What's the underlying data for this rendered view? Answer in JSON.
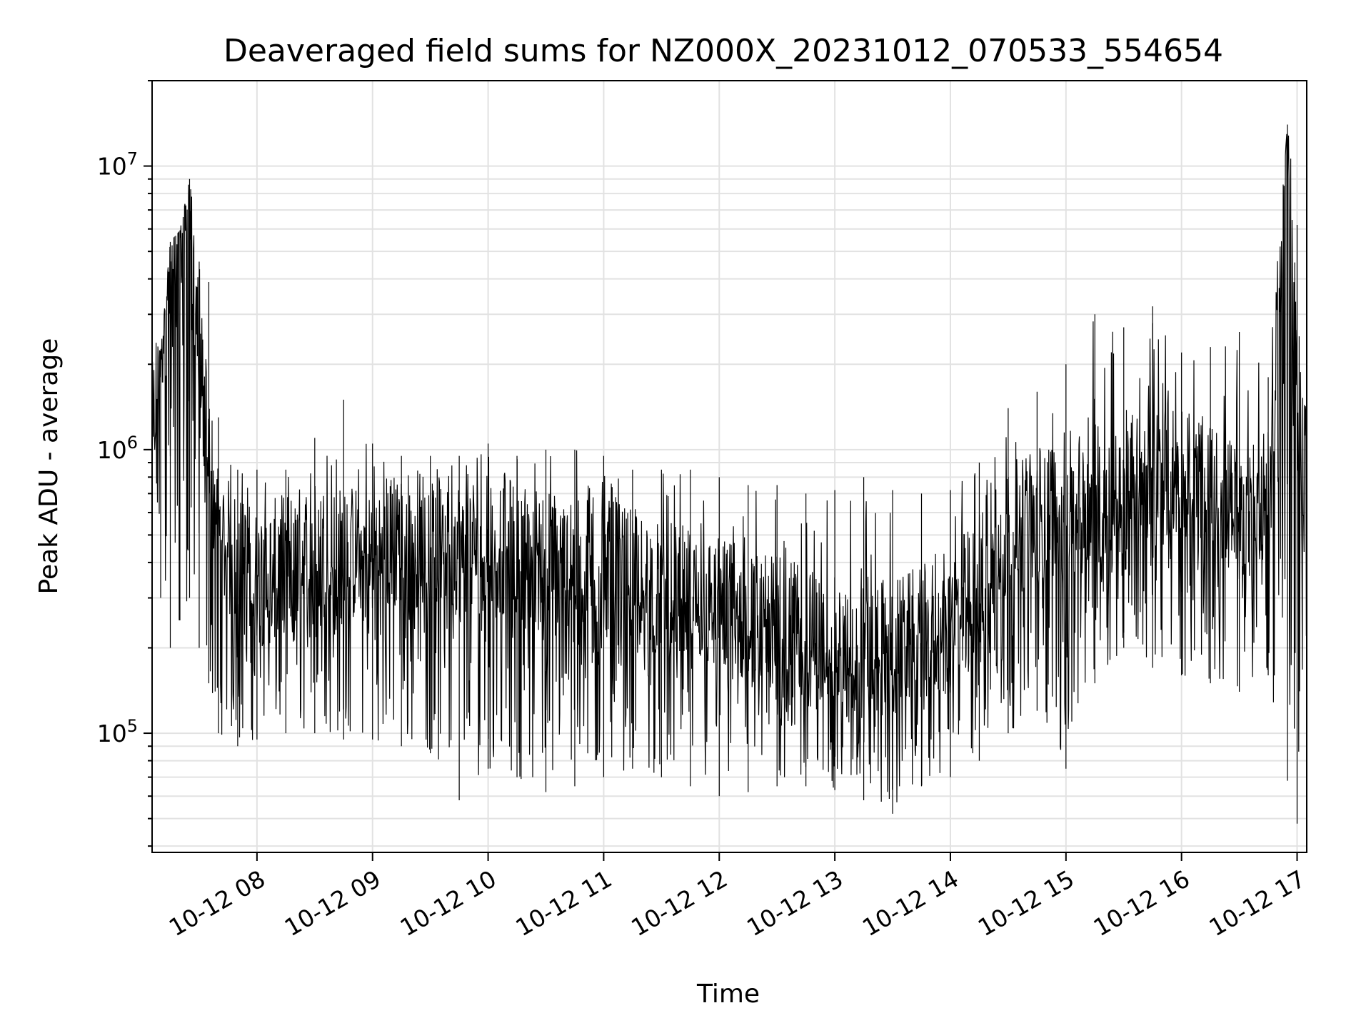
{
  "chart_data": {
    "type": "line",
    "title": "Deaveraged field sums for NZ000X_20231012_070533_554654",
    "xlabel": "Time",
    "ylabel": "Peak ADU - average",
    "yscale": "log",
    "ylim": [
      38000,
      20000000
    ],
    "xlim": [
      "2023-10-12 07:05:33",
      "2023-10-12 17:05:00"
    ],
    "grid": true,
    "line_color": "#000000",
    "x_ticks": [
      "10-12 08",
      "10-12 09",
      "10-12 10",
      "10-12 11",
      "10-12 12",
      "10-12 13",
      "10-12 14",
      "10-12 15",
      "10-12 16",
      "10-12 17"
    ],
    "y_ticks": [
      {
        "base": "10",
        "exp": "5",
        "value": 100000
      },
      {
        "base": "10",
        "exp": "6",
        "value": 1000000
      },
      {
        "base": "10",
        "exp": "7",
        "value": 10000000
      }
    ],
    "series": [
      {
        "x": [
          "2023-10-12 07:05",
          "2023-10-12 07:10",
          "2023-10-12 07:15",
          "2023-10-12 07:20",
          "2023-10-12 07:25",
          "2023-10-12 07:30",
          "2023-10-12 07:35",
          "2023-10-12 07:40",
          "2023-10-12 07:50",
          "2023-10-12 08:00",
          "2023-10-12 08:15",
          "2023-10-12 08:30",
          "2023-10-12 08:45",
          "2023-10-12 09:00",
          "2023-10-12 09:15",
          "2023-10-12 09:30",
          "2023-10-12 09:45",
          "2023-10-12 10:00",
          "2023-10-12 10:15",
          "2023-10-12 10:30",
          "2023-10-12 10:45",
          "2023-10-12 11:00",
          "2023-10-12 11:15",
          "2023-10-12 11:30",
          "2023-10-12 11:45",
          "2023-10-12 12:00",
          "2023-10-12 12:15",
          "2023-10-12 12:30",
          "2023-10-12 12:45",
          "2023-10-12 13:00",
          "2023-10-12 13:15",
          "2023-10-12 13:30",
          "2023-10-12 13:45",
          "2023-10-12 14:00",
          "2023-10-12 14:15",
          "2023-10-12 14:30",
          "2023-10-12 14:45",
          "2023-10-12 15:00",
          "2023-10-12 15:15",
          "2023-10-12 15:30",
          "2023-10-12 15:45",
          "2023-10-12 16:00",
          "2023-10-12 16:15",
          "2023-10-12 16:30",
          "2023-10-12 16:45",
          "2023-10-12 16:55",
          "2023-10-12 17:00",
          "2023-10-12 17:05"
        ],
        "values": [
          1000000,
          2500000,
          4000000,
          5500000,
          9000000,
          2000000,
          1000000,
          500000,
          400000,
          350000,
          400000,
          450000,
          420000,
          450000,
          480000,
          500000,
          460000,
          480000,
          450000,
          420000,
          400000,
          380000,
          350000,
          320000,
          300000,
          280000,
          260000,
          240000,
          220000,
          200000,
          190000,
          200000,
          220000,
          250000,
          350000,
          500000,
          600000,
          650000,
          700000,
          750000,
          800000,
          850000,
          700000,
          600000,
          650000,
          14000000,
          1500000,
          800000
        ],
        "min_envelope": [
          500000,
          300000,
          200000,
          250000,
          300000,
          200000,
          150000,
          100000,
          90000,
          95000,
          100000,
          100000,
          95000,
          95000,
          90000,
          85000,
          58000,
          75000,
          70000,
          62000,
          65000,
          70000,
          75000,
          70000,
          65000,
          60000,
          62000,
          65000,
          65000,
          63000,
          58000,
          52000,
          65000,
          70000,
          80000,
          100000,
          120000,
          75000,
          150000,
          200000,
          170000,
          160000,
          150000,
          140000,
          160000,
          68000,
          48000,
          150000
        ],
        "max_envelope": [
          2600000,
          2200000,
          5400000,
          5900000,
          9000000,
          4600000,
          3900000,
          1300000,
          850000,
          850000,
          850000,
          1100000,
          1500000,
          1050000,
          950000,
          950000,
          950000,
          1050000,
          950000,
          1000000,
          1000000,
          950000,
          850000,
          850000,
          850000,
          800000,
          750000,
          750000,
          700000,
          720000,
          800000,
          720000,
          700000,
          720000,
          900000,
          1400000,
          1600000,
          2000000,
          3000000,
          2700000,
          3200000,
          2200000,
          2300000,
          2600000,
          1800000,
          14000000,
          6200000,
          1800000
        ]
      }
    ]
  }
}
